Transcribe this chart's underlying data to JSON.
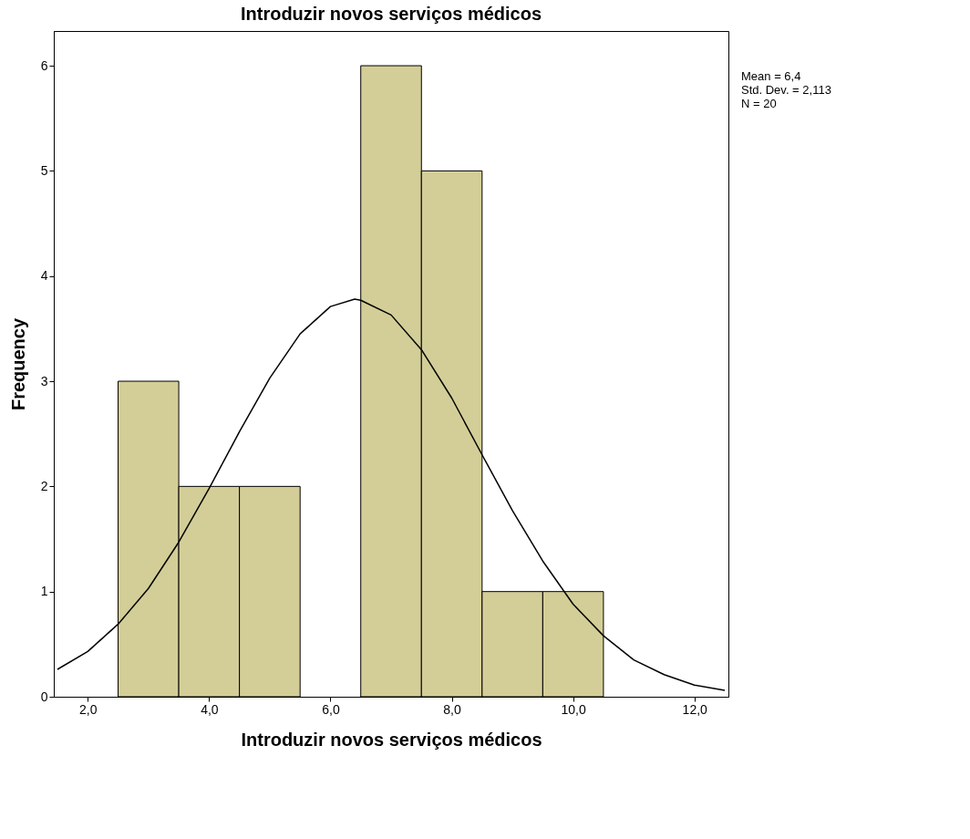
{
  "chart_data": {
    "type": "histogram",
    "title": "Introduzir novos serviços médicos",
    "xlabel": "Introduzir novos serviços médicos",
    "ylabel": "Frequency",
    "bins": [
      2.5,
      3.5,
      4.5,
      5.5,
      6.5,
      7.5,
      8.5,
      9.5,
      10.5
    ],
    "values": [
      3,
      2,
      2,
      0,
      6,
      5,
      1,
      1
    ],
    "color": "#d3ce97",
    "series": [
      {
        "type": "line",
        "color": "#000000",
        "x": [
          1.5,
          2,
          2.5,
          3,
          3.5,
          4,
          4.5,
          5,
          5.5,
          6,
          6.4,
          6.5,
          7,
          7.5,
          8,
          8.5,
          9,
          9.5,
          10,
          10.5,
          11,
          11.5,
          12,
          12.5
        ],
        "values": [
          0.26,
          0.43,
          0.69,
          1.03,
          1.47,
          1.98,
          2.52,
          3.03,
          3.45,
          3.71,
          3.78,
          3.77,
          3.63,
          3.3,
          2.84,
          2.3,
          1.77,
          1.29,
          0.88,
          0.58,
          0.35,
          0.21,
          0.11,
          0.06
        ]
      }
    ],
    "xlim": [
      1.44,
      12.56
    ],
    "xticks": [
      {
        "value": 2,
        "label": "2,0"
      },
      {
        "value": 4,
        "label": "4,0"
      },
      {
        "value": 6,
        "label": "6,0"
      },
      {
        "value": 8,
        "label": "8,0"
      },
      {
        "value": 10,
        "label": "10,0"
      },
      {
        "value": 12,
        "label": "12,0"
      }
    ],
    "ylim": [
      0,
      6.33
    ],
    "yticks": [
      0,
      1,
      2,
      3,
      4,
      5,
      6
    ],
    "grid": false,
    "annotations": [
      "Mean = 6,4",
      "Std. Dev. = 2,113",
      "N = 20"
    ]
  }
}
